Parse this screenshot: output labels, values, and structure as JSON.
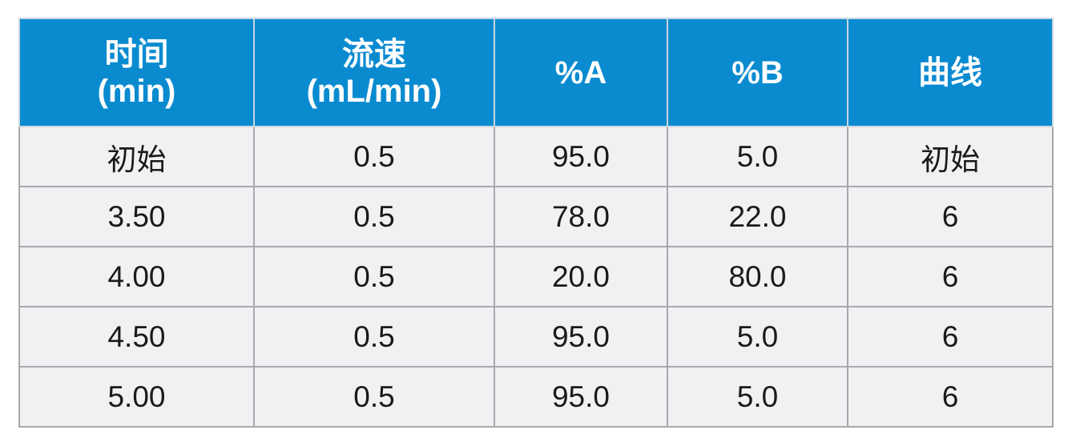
{
  "table": {
    "header": [
      [
        "时间",
        "(min)"
      ],
      [
        "流速",
        "(mL/min)"
      ],
      [
        "%A"
      ],
      [
        "%B"
      ],
      [
        "曲线"
      ]
    ],
    "rows": [
      [
        "初始",
        "0.5",
        "95.0",
        "5.0",
        "初始"
      ],
      [
        "3.50",
        "0.5",
        "78.0",
        "22.0",
        "6"
      ],
      [
        "4.00",
        "0.5",
        "20.0",
        "80.0",
        "6"
      ],
      [
        "4.50",
        "0.5",
        "95.0",
        "5.0",
        "6"
      ],
      [
        "5.00",
        "0.5",
        "95.0",
        "5.0",
        "6"
      ]
    ]
  }
}
